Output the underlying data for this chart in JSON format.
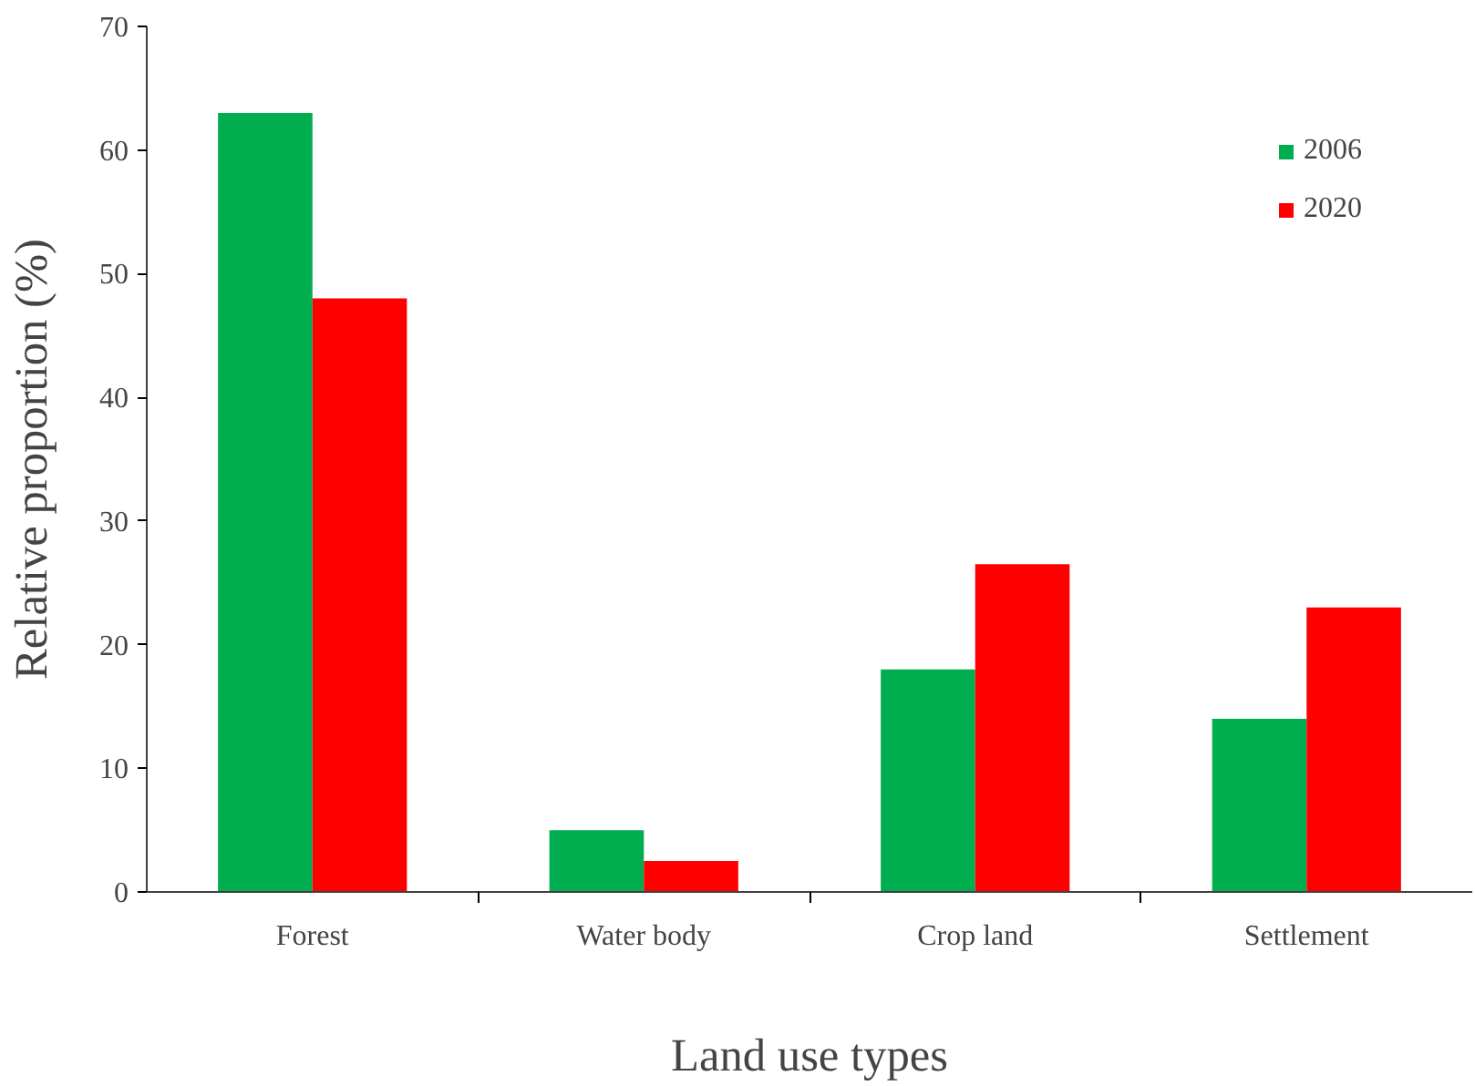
{
  "chart_data": {
    "type": "bar",
    "xlabel": "Land use types",
    "ylabel": "Relative proportion (%)",
    "categories": [
      "Forest",
      "Water body",
      "Crop land",
      "Settlement"
    ],
    "series": [
      {
        "name": "2006",
        "color": "#00ad4f",
        "values": [
          63,
          5,
          18,
          14
        ]
      },
      {
        "name": "2020",
        "color": "#ff0000",
        "values": [
          48,
          2.5,
          26.5,
          23
        ]
      }
    ],
    "ylim": [
      0,
      70
    ],
    "yticks": [
      0,
      10,
      20,
      30,
      40,
      50,
      60,
      70
    ],
    "grid": false,
    "legend": "top right"
  }
}
